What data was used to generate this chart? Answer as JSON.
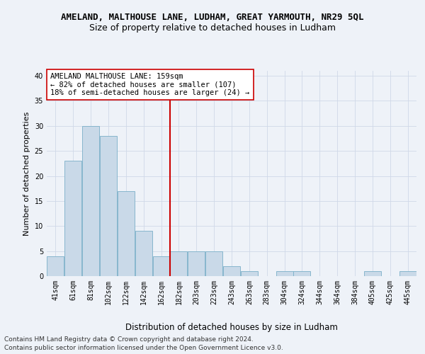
{
  "title": "AMELAND, MALTHOUSE LANE, LUDHAM, GREAT YARMOUTH, NR29 5QL",
  "subtitle": "Size of property relative to detached houses in Ludham",
  "xlabel": "Distribution of detached houses by size in Ludham",
  "ylabel": "Number of detached properties",
  "categories": [
    "41sqm",
    "61sqm",
    "81sqm",
    "102sqm",
    "122sqm",
    "142sqm",
    "162sqm",
    "182sqm",
    "203sqm",
    "223sqm",
    "243sqm",
    "263sqm",
    "283sqm",
    "304sqm",
    "324sqm",
    "344sqm",
    "364sqm",
    "384sqm",
    "405sqm",
    "425sqm",
    "445sqm"
  ],
  "values": [
    4,
    23,
    30,
    28,
    17,
    9,
    4,
    5,
    5,
    5,
    2,
    1,
    0,
    1,
    1,
    0,
    0,
    0,
    1,
    0,
    1
  ],
  "bar_color": "#c9d9e8",
  "bar_edge_color": "#7aafc8",
  "vline_color": "#cc0000",
  "vline_x_index": 6,
  "annotation_text": "AMELAND MALTHOUSE LANE: 159sqm\n← 82% of detached houses are smaller (107)\n18% of semi-detached houses are larger (24) →",
  "annotation_box_color": "#ffffff",
  "annotation_box_edge": "#cc0000",
  "grid_color": "#d0d8e8",
  "background_color": "#eef2f8",
  "ylim": [
    0,
    41
  ],
  "yticks": [
    0,
    5,
    10,
    15,
    20,
    25,
    30,
    35,
    40
  ],
  "footer_line1": "Contains HM Land Registry data © Crown copyright and database right 2024.",
  "footer_line2": "Contains public sector information licensed under the Open Government Licence v3.0.",
  "title_fontsize": 9,
  "subtitle_fontsize": 9,
  "xlabel_fontsize": 8.5,
  "ylabel_fontsize": 8,
  "tick_fontsize": 7,
  "annotation_fontsize": 7.5,
  "footer_fontsize": 6.5
}
